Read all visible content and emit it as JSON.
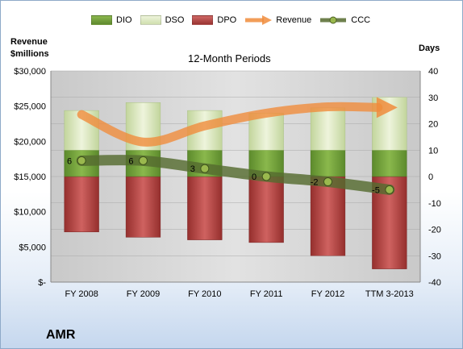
{
  "chart_data": {
    "type": "bar",
    "subtitle": "12-Month Periods",
    "left_axis_label": [
      "Revenue",
      "$millions"
    ],
    "right_axis_label": "Days",
    "company": "AMR",
    "categories": [
      "FY 2008",
      "FY 2009",
      "FY 2010",
      "FY 2011",
      "FY 2012",
      "TTM 3-2013"
    ],
    "left_ticks": [
      "$-",
      "$5,000",
      "$10,000",
      "$15,000",
      "$20,000",
      "$25,000",
      "$30,000"
    ],
    "right_ticks": [
      "-40",
      "-30",
      "-20",
      "-10",
      "0",
      "10",
      "20",
      "30",
      "40"
    ],
    "left_range": [
      0,
      30000
    ],
    "right_range": [
      -40,
      40
    ],
    "legend_position": "top",
    "series": [
      {
        "name": "DIO",
        "axis": "days",
        "values": [
          10,
          10,
          10,
          10,
          10,
          10
        ],
        "color": "#6e9a3a"
      },
      {
        "name": "DSO",
        "axis": "days",
        "values": [
          15,
          18,
          15,
          14,
          16,
          20
        ],
        "color": "#d6e4b8"
      },
      {
        "name": "DPO",
        "axis": "days",
        "values": [
          -21,
          -23,
          -24,
          -25,
          -30,
          -35
        ],
        "color": "#b54745"
      },
      {
        "name": "Revenue",
        "axis": "revenue",
        "values": [
          23800,
          19900,
          22200,
          24000,
          24900,
          24800
        ],
        "color": "#f08c3c"
      },
      {
        "name": "CCC",
        "axis": "days",
        "values": [
          6,
          6,
          3,
          0,
          -2,
          -5
        ],
        "color": "#556b2f"
      }
    ],
    "data_labels": [
      "6",
      "6",
      "3",
      "0",
      "-2",
      "-5"
    ]
  }
}
